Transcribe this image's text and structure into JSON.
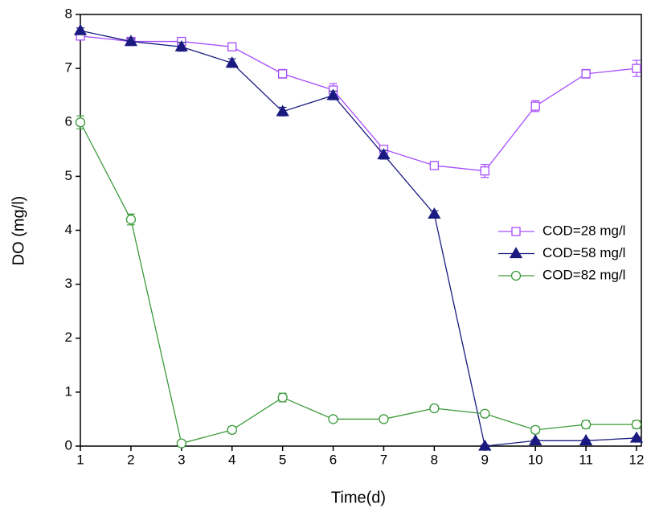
{
  "chart_data": {
    "type": "line",
    "x_label": "Time(d)",
    "y_label": "DO (mg/l)",
    "x": [
      1,
      2,
      3,
      4,
      5,
      6,
      7,
      8,
      9,
      10,
      11,
      12
    ],
    "xlim": [
      1,
      12
    ],
    "xticks": [
      1,
      2,
      3,
      4,
      5,
      6,
      7,
      8,
      9,
      10,
      11,
      12
    ],
    "ylim": [
      0,
      8
    ],
    "yticks": [
      0,
      1,
      2,
      3,
      4,
      5,
      6,
      7,
      8
    ],
    "legend": "right",
    "series": [
      {
        "name": "COD=28 mg/l",
        "color": "#a64dff",
        "marker": "square-open",
        "values": [
          7.6,
          7.5,
          7.5,
          7.4,
          6.9,
          6.6,
          5.5,
          5.2,
          5.1,
          6.3,
          6.9,
          7.0
        ],
        "errors": [
          0.05,
          0.05,
          0.05,
          0.05,
          0.08,
          0.12,
          0.06,
          0.07,
          0.12,
          0.1,
          0.08,
          0.15
        ]
      },
      {
        "name": "COD=58 mg/l",
        "color": "#1a1a80",
        "marker": "triangle",
        "values": [
          7.7,
          7.5,
          7.4,
          7.1,
          6.2,
          6.5,
          5.4,
          4.3,
          0.0,
          0.1,
          0.1,
          0.15
        ],
        "errors": [
          0.05,
          0.05,
          0.08,
          0.08,
          0.08,
          0.08,
          0.08,
          0.06,
          0.02,
          0.02,
          0.02,
          0.02
        ]
      },
      {
        "name": "COD=82 mg/l",
        "color": "#3a9a3a",
        "marker": "circle-open",
        "values": [
          6.0,
          4.2,
          0.05,
          0.3,
          0.9,
          0.5,
          0.5,
          0.7,
          0.6,
          0.3,
          0.4,
          0.4
        ],
        "errors": [
          0.12,
          0.1,
          0.03,
          0.06,
          0.08,
          0.05,
          0.05,
          0.05,
          0.05,
          0.06,
          0.07,
          0.07
        ]
      }
    ]
  }
}
